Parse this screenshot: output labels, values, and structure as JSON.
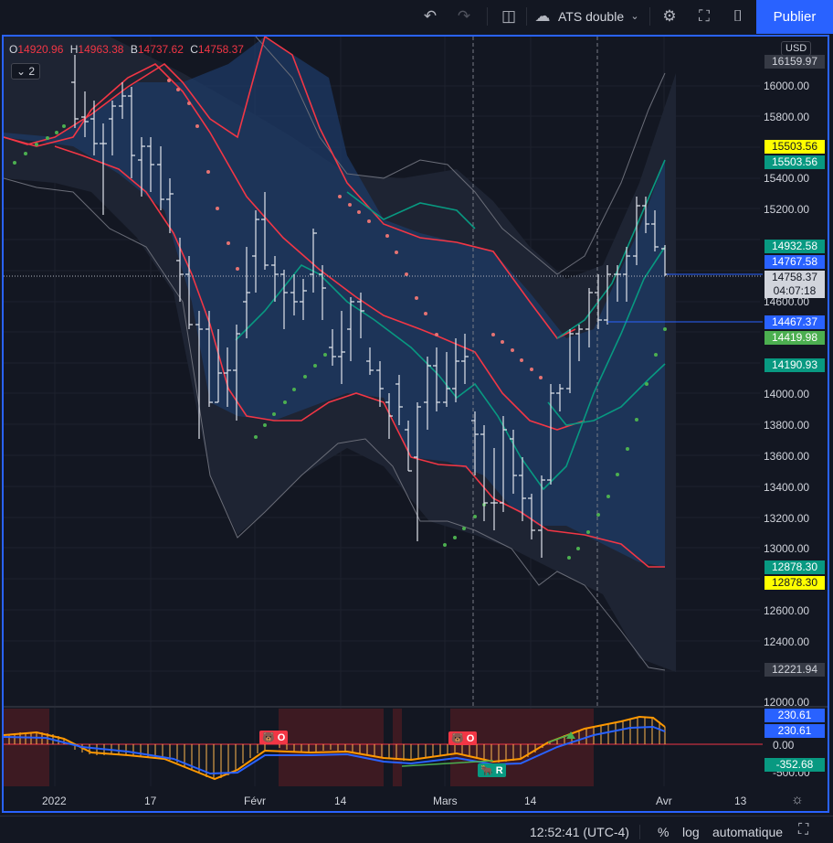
{
  "toolbar": {
    "undo_icon": "undo-icon",
    "redo_icon": "redo-icon",
    "layout_icon": "split-layout-icon",
    "cloud_icon": "cloud-icon",
    "layout_name": "ATS double",
    "settings_icon": "gear-icon",
    "fullscreen_icon": "fullscreen-icon",
    "snapshot_icon": "camera-icon",
    "publish_label": "Publier"
  },
  "legend": {
    "o_key": "O",
    "o_val": "14920.96",
    "h_key": "H",
    "h_val": "14963.38",
    "b_key": "B",
    "b_val": "14737.62",
    "c_key": "C",
    "c_val": "14758.37",
    "indicator_count": "2"
  },
  "currency_button": "USD",
  "price_axis": {
    "ticks": [
      "16000.00",
      "15800.00",
      "15400.00",
      "15200.00",
      "14600.00",
      "14000.00",
      "13800.00",
      "13600.00",
      "13400.00",
      "13200.00",
      "13000.00",
      "12600.00",
      "12400.00",
      "12000.00"
    ],
    "osc_ticks": [
      "0.00",
      "-500.00"
    ]
  },
  "price_labels": {
    "top": "16159.97",
    "yellow_high": "15503.56",
    "green_high": "15503.56",
    "green_upper": "14932.58",
    "blue_upper": "14767.58",
    "current_price": "14758.37",
    "countdown": "04:07:18",
    "blue_line": "14467.37",
    "green_mid": "14419.98",
    "green_lower": "14190.93",
    "green_low": "12878.30",
    "yellow_low": "12878.30",
    "gray_low": "12221.94",
    "osc_a": "230.61",
    "osc_b": "230.61",
    "osc_c": "-352.68"
  },
  "osc_markers": {
    "sell_a": "O",
    "sell_b": "O",
    "buy_a": "R"
  },
  "time_axis": [
    "2022",
    "17",
    "Févr",
    "14",
    "Mars",
    "14",
    "Avr",
    "13"
  ],
  "status_bar": {
    "clock": "12:52:41 (UTC-4)",
    "percent": "%",
    "log": "log",
    "auto": "automatique"
  },
  "colors": {
    "background": "#131722",
    "up_band": "#089981",
    "down_band": "#f23645",
    "accent": "#2962ff",
    "yellow": "#ffff00",
    "macd_orange": "#ff9800",
    "macd_blue": "#2962ff"
  }
}
